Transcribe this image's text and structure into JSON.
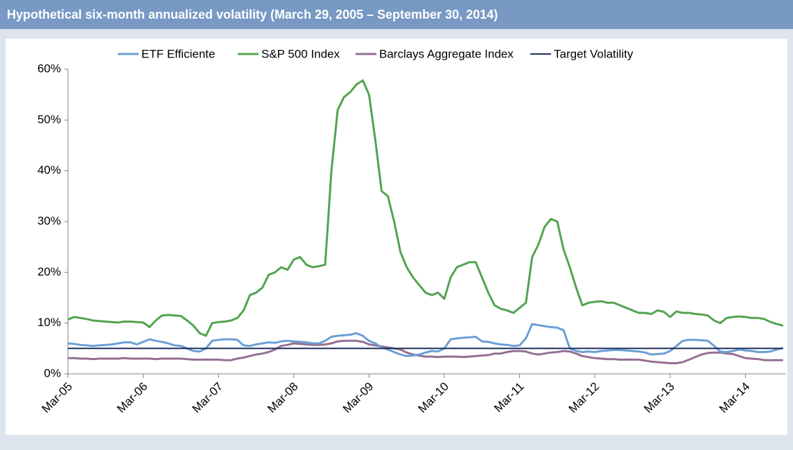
{
  "chart_data": {
    "type": "line",
    "title": "Hypothetical six-month annualized volatility (March 29, 2005 – September 30, 2014)",
    "x": [
      "Mar-05",
      null,
      null,
      null,
      null,
      null,
      null,
      null,
      null,
      null,
      null,
      null,
      "Mar-06",
      null,
      null,
      null,
      null,
      null,
      null,
      null,
      null,
      null,
      null,
      null,
      "Mar-07",
      null,
      null,
      null,
      null,
      null,
      null,
      null,
      null,
      null,
      null,
      null,
      "Mar-08",
      null,
      null,
      null,
      null,
      null,
      null,
      null,
      null,
      null,
      null,
      null,
      "Mar-09",
      null,
      null,
      null,
      null,
      null,
      null,
      null,
      null,
      null,
      null,
      null,
      "Mar-10",
      null,
      null,
      null,
      null,
      null,
      null,
      null,
      null,
      null,
      null,
      null,
      "Mar-11",
      null,
      null,
      null,
      null,
      null,
      null,
      null,
      null,
      null,
      null,
      null,
      "Mar-12",
      null,
      null,
      null,
      null,
      null,
      null,
      null,
      null,
      null,
      null,
      null,
      "Mar-13",
      null,
      null,
      null,
      null,
      null,
      null,
      null,
      null,
      null,
      null,
      null,
      "Mar-14",
      null,
      null,
      null,
      null,
      null,
      null
    ],
    "series": [
      {
        "name": "ETF Efficiente",
        "color": "#6a9fd6",
        "values": [
          6,
          5.9,
          5.7,
          5.6,
          5.5,
          5.6,
          5.7,
          5.8,
          6,
          6.2,
          6.2,
          5.8,
          6.3,
          6.8,
          6.5,
          6.3,
          6,
          5.6,
          5.5,
          5,
          4.5,
          4.4,
          5,
          6.5,
          6.7,
          6.8,
          6.8,
          6.7,
          5.6,
          5.5,
          5.8,
          6,
          6.2,
          6.1,
          6.4,
          6.5,
          6.4,
          6.3,
          6.2,
          6,
          6,
          6.5,
          7.3,
          7.5,
          7.6,
          7.7,
          8,
          7.5,
          6.5,
          6,
          5.2,
          4.8,
          4.3,
          3.8,
          3.5,
          3.6,
          3.8,
          4.2,
          4.5,
          4.4,
          5,
          6.8,
          7,
          7.1,
          7.2,
          7.3,
          6.4,
          6.3,
          6,
          5.8,
          5.7,
          5.5,
          5.6,
          7,
          9.8,
          9.6,
          9.4,
          9.2,
          9.1,
          8.6,
          5,
          4.5,
          4.3,
          4.4,
          4.3,
          4.5,
          4.6,
          4.7,
          4.7,
          4.6,
          4.5,
          4.4,
          4.2,
          3.8,
          3.9,
          4,
          4.5,
          5.5,
          6.5,
          6.7,
          6.7,
          6.6,
          6.5,
          5.5,
          4.4,
          4.3,
          4.5,
          4.8,
          4.6,
          4.5,
          4.3,
          4.3,
          4.4,
          4.8,
          5.1
        ]
      },
      {
        "name": "S&P 500 Index",
        "color": "#52a34f",
        "values": [
          10.7,
          11.2,
          11,
          10.8,
          10.5,
          10.4,
          10.3,
          10.2,
          10.1,
          10.3,
          10.3,
          10.2,
          10.1,
          9.2,
          10.5,
          11.5,
          11.6,
          11.5,
          11.4,
          10.5,
          9.5,
          8,
          7.5,
          10,
          10.2,
          10.3,
          10.5,
          11,
          12.5,
          15.5,
          16,
          17,
          19.5,
          20,
          21,
          20.5,
          22.5,
          23,
          21.5,
          21,
          21.2,
          21.5,
          40,
          52,
          54.5,
          55.5,
          57,
          57.8,
          55,
          46,
          36,
          35,
          30,
          24,
          21,
          19,
          17.5,
          16,
          15.5,
          16,
          14.8,
          19,
          21,
          21.5,
          22,
          22,
          19,
          16,
          13.5,
          12.8,
          12.5,
          12,
          13,
          14,
          23,
          25.5,
          29,
          30.5,
          30,
          24.5,
          21,
          17,
          13.5,
          14,
          14.2,
          14.3,
          14,
          14,
          13.5,
          13,
          12.5,
          12,
          12,
          11.8,
          12.5,
          12.2,
          11.2,
          12.3,
          12,
          12,
          11.8,
          11.7,
          11.5,
          10.5,
          10,
          11,
          11.2,
          11.3,
          11.2,
          11,
          11,
          10.8,
          10.2,
          9.8,
          9.5
        ]
      },
      {
        "name": "Barclays Aggregate Index",
        "color": "#946f93",
        "values": [
          3.1,
          3.1,
          3,
          3,
          2.9,
          3,
          3,
          3,
          3,
          3.1,
          3,
          3,
          3,
          3,
          2.9,
          3,
          3,
          3,
          3,
          2.9,
          2.8,
          2.8,
          2.8,
          2.8,
          2.8,
          2.7,
          2.7,
          3,
          3.2,
          3.5,
          3.8,
          4,
          4.3,
          4.8,
          5.5,
          5.7,
          6,
          5.9,
          5.8,
          5.7,
          5.7,
          5.8,
          6,
          6.4,
          6.5,
          6.5,
          6.5,
          6.3,
          5.8,
          5.6,
          5.4,
          5.2,
          5,
          4.8,
          4.2,
          3.8,
          3.6,
          3.4,
          3.4,
          3.3,
          3.4,
          3.4,
          3.4,
          3.3,
          3.4,
          3.5,
          3.6,
          3.7,
          4,
          4,
          4.3,
          4.5,
          4.5,
          4.4,
          4,
          3.8,
          4,
          4.2,
          4.3,
          4.5,
          4.4,
          4,
          3.5,
          3.3,
          3.1,
          3,
          2.9,
          2.9,
          2.8,
          2.8,
          2.8,
          2.8,
          2.6,
          2.4,
          2.3,
          2.2,
          2.1,
          2.1,
          2.3,
          2.8,
          3.3,
          3.8,
          4.1,
          4.2,
          4.2,
          4,
          3.9,
          3.5,
          3.1,
          3,
          2.9,
          2.7,
          2.7,
          2.7,
          2.7
        ]
      },
      {
        "name": "Target Volatility",
        "color": "#1c2f5c",
        "values": [
          5,
          5,
          5,
          5,
          5,
          5,
          5,
          5,
          5,
          5,
          5,
          5,
          5,
          5,
          5,
          5,
          5,
          5,
          5,
          5,
          5,
          5,
          5,
          5,
          5,
          5,
          5,
          5,
          5,
          5,
          5,
          5,
          5,
          5,
          5,
          5,
          5,
          5,
          5,
          5,
          5,
          5,
          5,
          5,
          5,
          5,
          5,
          5,
          5,
          5,
          5,
          5,
          5,
          5,
          5,
          5,
          5,
          5,
          5,
          5,
          5,
          5,
          5,
          5,
          5,
          5,
          5,
          5,
          5,
          5,
          5,
          5,
          5,
          5,
          5,
          5,
          5,
          5,
          5,
          5,
          5,
          5,
          5,
          5,
          5,
          5,
          5,
          5,
          5,
          5,
          5,
          5,
          5,
          5,
          5,
          5,
          5,
          5,
          5,
          5,
          5,
          5,
          5,
          5,
          5,
          5,
          5,
          5,
          5,
          5,
          5,
          5,
          5,
          5,
          5
        ]
      }
    ],
    "ylim": [
      0,
      60
    ],
    "yticks": [
      {
        "value": 0,
        "label": "0%"
      },
      {
        "value": 10,
        "label": "10%"
      },
      {
        "value": 20,
        "label": "20%"
      },
      {
        "value": 30,
        "label": "30%"
      },
      {
        "value": 40,
        "label": "40%"
      },
      {
        "value": 50,
        "label": "50%"
      },
      {
        "value": 60,
        "label": "60%"
      }
    ]
  }
}
